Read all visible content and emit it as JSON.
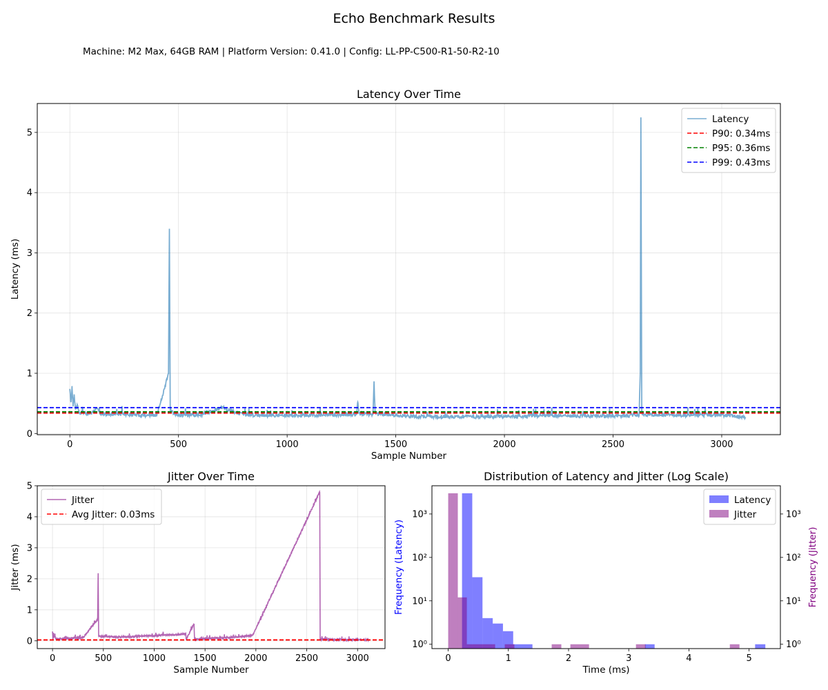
{
  "figure": {
    "title": "Echo Benchmark Results",
    "subtitle": "Machine: M2 Max, 64GB RAM | Platform Version: 0.41.0 | Config: LL-PP-C500-R1-50-R2-10"
  },
  "colors": {
    "latency": "#1f77b4",
    "jitter": "#800080",
    "p90": "#ff0000",
    "p95": "#008000",
    "p99": "#0000ff",
    "avg_jitter": "#ff0000",
    "hist_latency": "#0000ff",
    "hist_jitter": "#800080"
  },
  "chart_data": [
    {
      "type": "line",
      "title": "Latency Over Time",
      "xlabel": "Sample Number",
      "ylabel": "Latency (ms)",
      "xlim": [
        -150,
        3270
      ],
      "ylim": [
        -0.02,
        5.48
      ],
      "xticks": [
        0,
        500,
        1000,
        1500,
        2000,
        2500,
        3000
      ],
      "yticks": [
        0,
        1,
        2,
        3,
        4,
        5
      ],
      "grid": true,
      "legend_position": "top-right",
      "series": [
        {
          "name": "Latency",
          "n_samples": 3110,
          "baseline": 0.29,
          "noise": 0.03,
          "points": [
            [
              0,
              0.74
            ],
            [
              5,
              0.52
            ],
            [
              10,
              0.76
            ],
            [
              15,
              0.45
            ],
            [
              20,
              0.65
            ],
            [
              25,
              0.42
            ],
            [
              35,
              0.47
            ],
            [
              45,
              0.33
            ],
            [
              60,
              0.36
            ],
            [
              80,
              0.32
            ],
            [
              100,
              0.34
            ],
            [
              120,
              0.41
            ],
            [
              150,
              0.31
            ],
            [
              200,
              0.33
            ],
            [
              300,
              0.31
            ],
            [
              400,
              0.3
            ],
            [
              454,
              0.99
            ],
            [
              458,
              3.4
            ],
            [
              462,
              0.4
            ],
            [
              480,
              0.31
            ],
            [
              600,
              0.31
            ],
            [
              700,
              0.43
            ],
            [
              800,
              0.31
            ],
            [
              1000,
              0.3
            ],
            [
              1200,
              0.31
            ],
            [
              1320,
              0.32
            ],
            [
              1325,
              0.52
            ],
            [
              1330,
              0.33
            ],
            [
              1395,
              0.32
            ],
            [
              1400,
              0.86
            ],
            [
              1405,
              0.33
            ],
            [
              1600,
              0.28
            ],
            [
              1800,
              0.28
            ],
            [
              2000,
              0.28
            ],
            [
              2200,
              0.3
            ],
            [
              2400,
              0.29
            ],
            [
              2620,
              0.3
            ],
            [
              2625,
              1.0
            ],
            [
              2628,
              5.25
            ],
            [
              2632,
              0.32
            ],
            [
              2800,
              0.3
            ],
            [
              3000,
              0.31
            ],
            [
              3110,
              0.27
            ]
          ]
        }
      ],
      "hlines": [
        {
          "name": "P90: 0.34ms",
          "value": 0.34,
          "color": "#ff0000"
        },
        {
          "name": "P95: 0.36ms",
          "value": 0.36,
          "color": "#008000"
        },
        {
          "name": "P99: 0.43ms",
          "value": 0.43,
          "color": "#0000ff"
        }
      ]
    },
    {
      "type": "line",
      "title": "Jitter Over Time",
      "xlabel": "Sample Number",
      "ylabel": "Jitter (ms)",
      "xlim": [
        -150,
        3270
      ],
      "ylim": [
        -0.25,
        5.0
      ],
      "xticks": [
        0,
        500,
        1000,
        1500,
        2000,
        2500,
        3000
      ],
      "yticks": [
        0,
        1,
        2,
        3,
        4,
        5
      ],
      "grid": true,
      "legend_position": "top-left",
      "series": [
        {
          "name": "Jitter",
          "n_samples": 3110,
          "baseline": 0.03,
          "noise": 0.025,
          "points": [
            [
              0,
              0.3
            ],
            [
              5,
              0.05
            ],
            [
              10,
              0.25
            ],
            [
              15,
              0.1
            ],
            [
              20,
              0.2
            ],
            [
              30,
              0.06
            ],
            [
              300,
              0.1
            ],
            [
              444,
              0.7
            ],
            [
              449,
              2.18
            ],
            [
              454,
              0.15
            ],
            [
              700,
              0.12
            ],
            [
              1310,
              0.22
            ],
            [
              1315,
              0.05
            ],
            [
              1392,
              0.55
            ],
            [
              1397,
              0.05
            ],
            [
              1850,
              0.13
            ],
            [
              1970,
              0.18
            ],
            [
              2628,
              4.8
            ],
            [
              2632,
              0.05
            ],
            [
              3110,
              0.03
            ]
          ]
        }
      ],
      "hlines": [
        {
          "name": "Avg Jitter: 0.03ms",
          "value": 0.03,
          "color": "#ff0000"
        }
      ]
    },
    {
      "type": "bar",
      "title": "Distribution of Latency and Jitter (Log Scale)",
      "xlabel": "Time (ms)",
      "ylabel": "Frequency (Latency)",
      "ylabel_right": "Frequency (Jitter)",
      "xlim": [
        -0.27,
        5.52
      ],
      "xticks": [
        0,
        1,
        2,
        3,
        4,
        5
      ],
      "log_y": true,
      "ylim_log10": [
        -0.1,
        3.65
      ],
      "yticks": [
        {
          "value": 1,
          "label": "10⁰"
        },
        {
          "value": 10,
          "label": "10¹"
        },
        {
          "value": 100,
          "label": "10²"
        },
        {
          "value": 1000,
          "label": "10³"
        }
      ],
      "legend_position": "top-right",
      "series": [
        {
          "name": "Latency",
          "bins": [
            [
              0.23,
              0.4,
              3000
            ],
            [
              0.4,
              0.57,
              35
            ],
            [
              0.57,
              0.74,
              4
            ],
            [
              0.74,
              0.91,
              3
            ],
            [
              0.91,
              1.08,
              2
            ],
            [
              1.08,
              1.4,
              1
            ],
            [
              3.27,
              3.43,
              1
            ],
            [
              5.1,
              5.27,
              1
            ]
          ]
        },
        {
          "name": "Jitter",
          "bins": [
            [
              0.0,
              0.16,
              3000
            ],
            [
              0.16,
              0.31,
              12
            ],
            [
              0.31,
              0.78,
              1
            ],
            [
              0.94,
              1.1,
              1
            ],
            [
              1.72,
              1.88,
              1
            ],
            [
              2.03,
              2.19,
              1
            ],
            [
              2.19,
              2.34,
              1
            ],
            [
              3.12,
              3.28,
              1
            ],
            [
              4.68,
              4.84,
              1
            ]
          ]
        }
      ]
    }
  ]
}
